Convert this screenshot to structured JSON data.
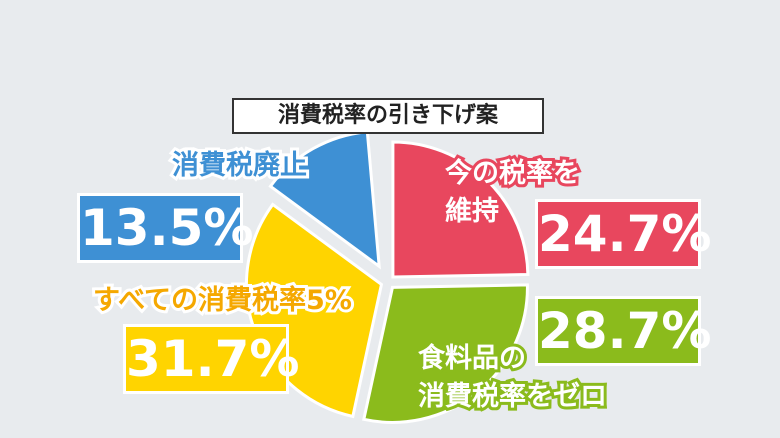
{
  "chart_data": {
    "type": "pie",
    "title": "消費税率の引き下げ案",
    "categories": [
      "今の税率を\n維持",
      "食料品の\n消費税率をゼロ",
      "すべての消費税率5%",
      "消費税廃止"
    ],
    "values": [
      24.7,
      28.7,
      31.7,
      13.5
    ],
    "value_labels": [
      "24.7%",
      "28.7%",
      "31.7%",
      "13.5%"
    ],
    "colors": [
      "#e8475e",
      "#8bbb1c",
      "#ffd400",
      "#3e90d4"
    ]
  }
}
